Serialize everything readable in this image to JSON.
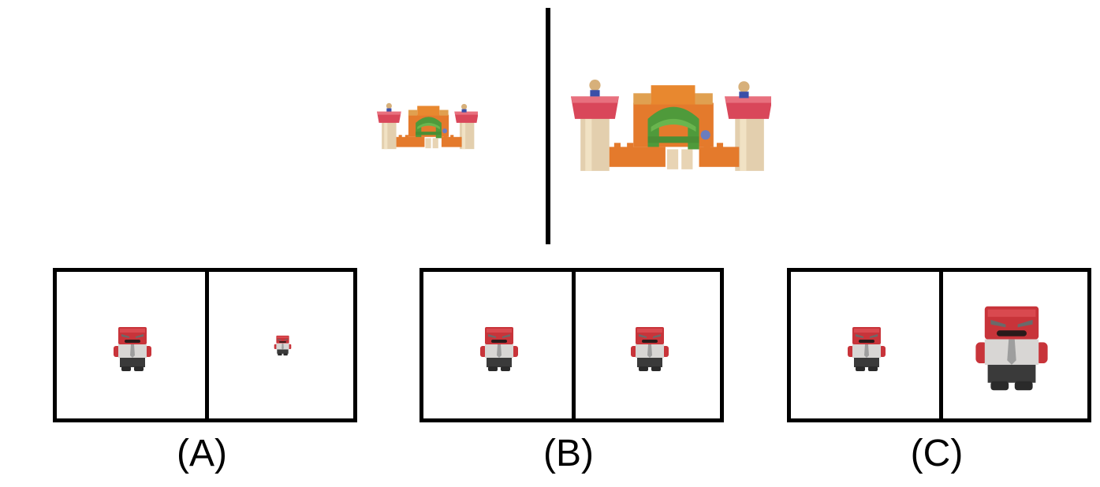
{
  "reference": {
    "left_object": "toy-castle-small",
    "right_object": "toy-castle-large"
  },
  "options": [
    {
      "label": "(A)",
      "left_object": "anger-figure",
      "right_object": "anger-figure-smaller",
      "right_relative_scale": 0.45
    },
    {
      "label": "(B)",
      "left_object": "anger-figure",
      "right_object": "anger-figure-same",
      "right_relative_scale": 1.0
    },
    {
      "label": "(C)",
      "left_object": "anger-figure",
      "right_object": "anger-figure-larger",
      "right_relative_scale": 2.0
    }
  ]
}
